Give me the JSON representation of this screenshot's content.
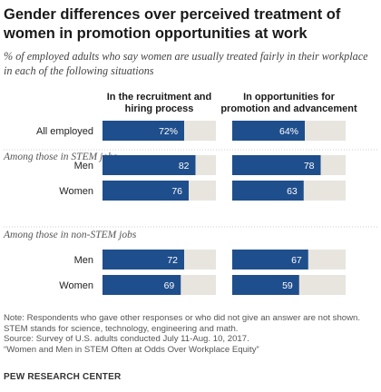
{
  "title": "Gender differences over perceived treatment of women in promotion opportunities at work",
  "subtitle": "% of employed adults who say women are usually treated fairly in their workplace in each of the following situations",
  "colors": {
    "bar": "#1f4e8c",
    "track": "#e8e5df",
    "divider": "#cccccc"
  },
  "chart_data": {
    "type": "bar",
    "orientation": "horizontal",
    "value_max": 100,
    "panels": [
      {
        "name": "In the recruitment and hiring process"
      },
      {
        "name": "In opportunities for promotion and advancement"
      }
    ],
    "groups": [
      {
        "heading": "",
        "rows": [
          {
            "label": "All employed",
            "values": [
              72,
              64
            ],
            "display": [
              "72%",
              "64%"
            ]
          }
        ]
      },
      {
        "heading": "Among those in STEM jobs",
        "rows": [
          {
            "label": "Men",
            "values": [
              82,
              78
            ],
            "display": [
              "82",
              "78"
            ]
          },
          {
            "label": "Women",
            "values": [
              76,
              63
            ],
            "display": [
              "76",
              "63"
            ]
          }
        ]
      },
      {
        "heading": "Among those in non-STEM jobs",
        "rows": [
          {
            "label": "Men",
            "values": [
              72,
              67
            ],
            "display": [
              "72",
              "67"
            ]
          },
          {
            "label": "Women",
            "values": [
              69,
              59
            ],
            "display": [
              "69",
              "59"
            ]
          }
        ]
      }
    ]
  },
  "note": {
    "lines": [
      "Note: Respondents who gave other responses or who did not give an answer are not shown.",
      "STEM stands for science, technology, engineering and math.",
      "Source: Survey of U.S. adults conducted July 11-Aug. 10, 2017.",
      "“Women and Men in STEM Often at Odds Over Workplace Equity”"
    ]
  },
  "brand": "PEW RESEARCH CENTER"
}
